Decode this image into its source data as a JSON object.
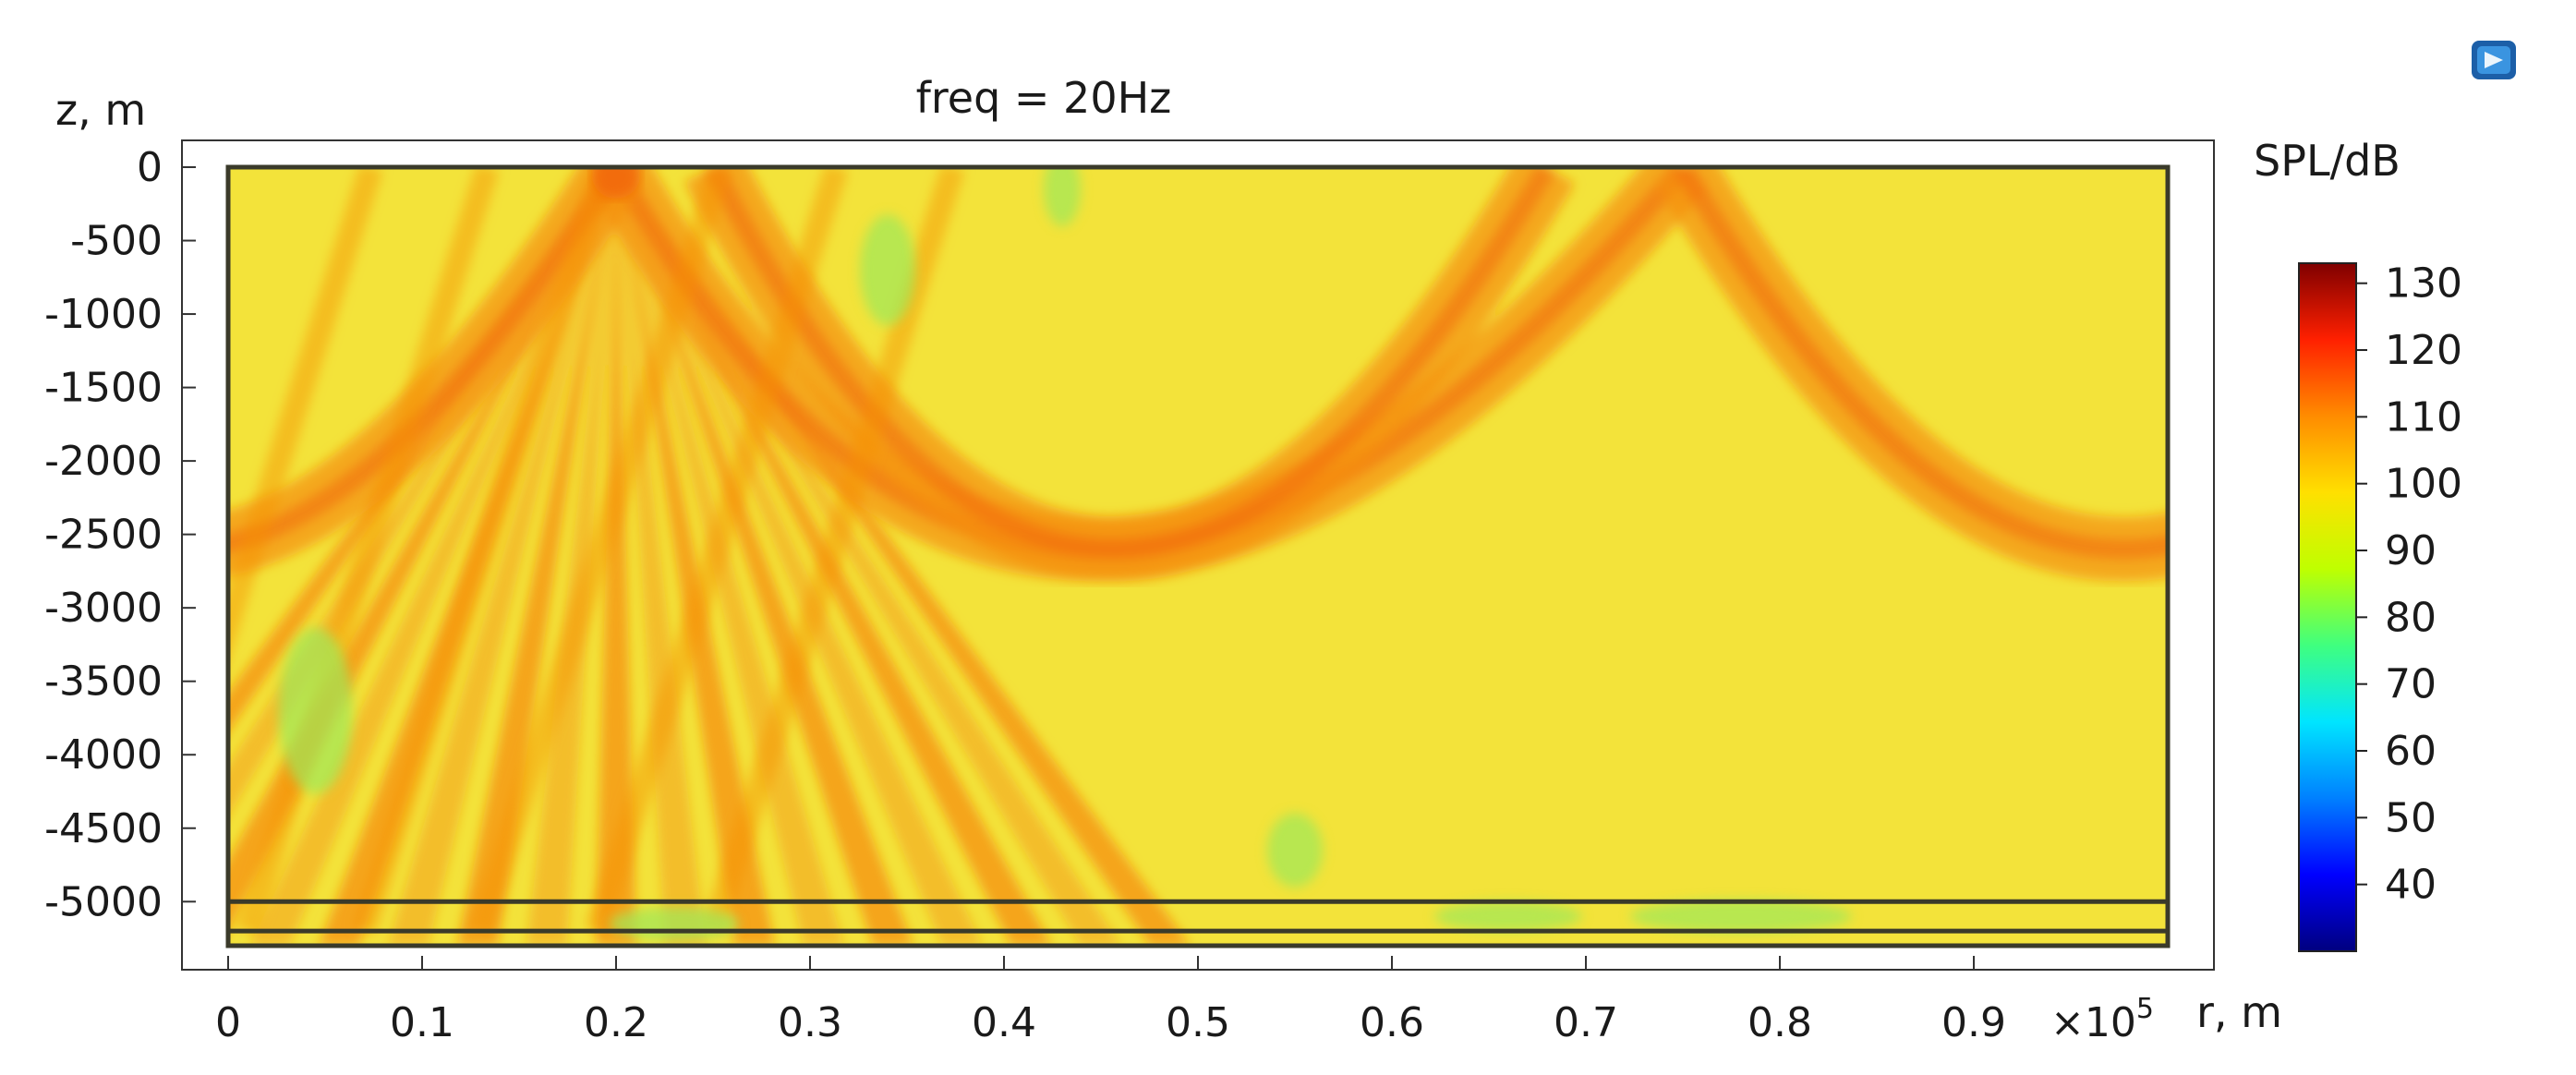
{
  "chart_data": {
    "type": "heatmap",
    "title": "freq = 20Hz",
    "ylabel": "z, m",
    "xlabel": "r, m",
    "x_multiplier": "×10",
    "x_multiplier_exp": "5",
    "xlim": [
      0,
      1.0
    ],
    "ylim": [
      -5300,
      0
    ],
    "x_ticks": [
      "0",
      "0.1",
      "0.2",
      "0.3",
      "0.4",
      "0.5",
      "0.6",
      "0.7",
      "0.8",
      "0.9"
    ],
    "x_tick_values": [
      0,
      0.1,
      0.2,
      0.3,
      0.4,
      0.5,
      0.6,
      0.7,
      0.8,
      0.9
    ],
    "y_ticks": [
      "0",
      "-500",
      "-1000",
      "-1500",
      "-2000",
      "-2500",
      "-3000",
      "-3500",
      "-4000",
      "-4500",
      "-5000"
    ],
    "y_tick_values": [
      0,
      -500,
      -1000,
      -1500,
      -2000,
      -2500,
      -3000,
      -3500,
      -4000,
      -4500,
      -5000
    ],
    "layer_boundaries_z": [
      -5000,
      -5200
    ],
    "source_r": 0.2,
    "colorbar": {
      "label": "SPL/dB",
      "min": 30,
      "max": 133,
      "ticks": [
        "130",
        "120",
        "110",
        "100",
        "90",
        "80",
        "70",
        "60",
        "50",
        "40"
      ],
      "tick_values": [
        130,
        120,
        110,
        100,
        90,
        80,
        70,
        60,
        50,
        40
      ],
      "colors": [
        "#00007f",
        "#0000ff",
        "#0080ff",
        "#00e5ff",
        "#3fff7f",
        "#bfff00",
        "#ffe000",
        "#ff8c00",
        "#ff2000",
        "#7f0000"
      ]
    },
    "field_colors": {
      "background": "#f3e33a",
      "high": "#f5900f",
      "peak": "#f26a10",
      "low": "#9ee85a"
    }
  },
  "ui": {
    "corner_icon": "comsol-app-icon"
  }
}
